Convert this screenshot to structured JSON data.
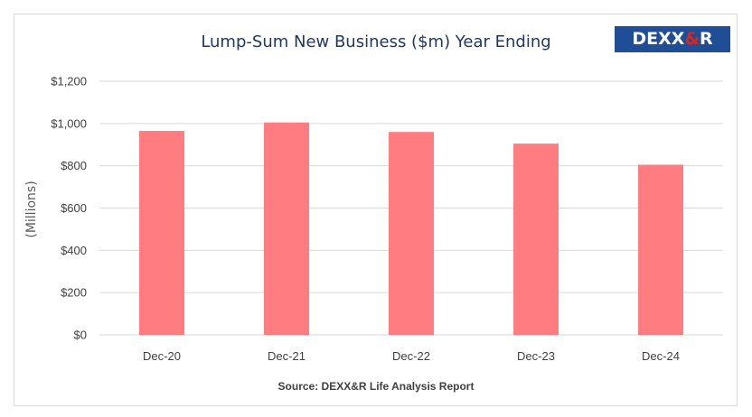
{
  "logo": {
    "left": "DEXX",
    "amp": "&",
    "right": "R"
  },
  "chart_data": {
    "type": "bar",
    "title": "Lump-Sum New Business ($m) Year Ending",
    "categories": [
      "Dec-20",
      "Dec-21",
      "Dec-22",
      "Dec-23",
      "Dec-24"
    ],
    "values": [
      965,
      1005,
      960,
      905,
      805
    ],
    "ylabel": "(Millions)",
    "xlabel": "",
    "ylim": [
      0,
      1200
    ],
    "yticks": [
      0,
      200,
      400,
      600,
      800,
      1000,
      1200
    ],
    "ytick_labels": [
      "$0",
      "$200",
      "$400",
      "$600",
      "$800",
      "$1,000",
      "$1,200"
    ],
    "grid": true,
    "bar_color": "#ff7c80",
    "grid_color": "#d9d9d9",
    "source": "Source: DEXX&R Life Analysis Report"
  }
}
